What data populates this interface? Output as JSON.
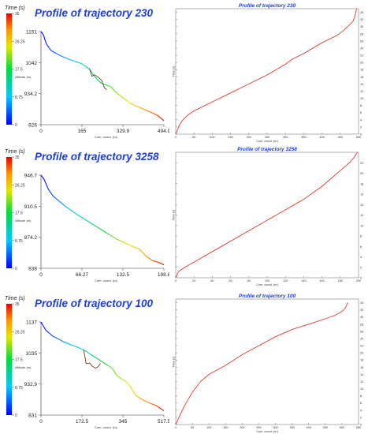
{
  "chart_data": [
    {
      "type": "line",
      "title": "Profile of trajectory 230",
      "colorbar": {
        "title": "Time (s)",
        "ticks": [
          "35",
          "26.25",
          "17.5",
          "8.75",
          "0"
        ],
        "axis_label": "Altitude (m)"
      },
      "profile": {
        "xlabel": "Cum. coord. (m)",
        "xticks": [
          "0",
          "165",
          "329.9",
          "494.9"
        ],
        "yticks": [
          "826",
          "934.2",
          "1042",
          "1151"
        ],
        "xlim": [
          0,
          494.9
        ],
        "ylim": [
          826,
          1151
        ],
        "x": [
          0,
          10,
          20,
          40,
          80,
          120,
          160,
          180,
          200,
          210,
          220,
          240,
          260,
          280,
          300,
          330,
          360,
          400,
          440,
          470,
          494.9
        ],
        "y": [
          1151,
          1140,
          1110,
          1085,
          1066,
          1052,
          1040,
          1030,
          1015,
          1000,
          990,
          972,
          965,
          960,
          940,
          920,
          900,
          885,
          870,
          858,
          840
        ],
        "alt_branch": {
          "x": [
            195,
            205,
            215,
            230,
            245,
            255,
            265
          ],
          "y": [
            1022,
            995,
            1000,
            992,
            980,
            955,
            948
          ]
        }
      },
      "series_chart": {
        "title": "Profile of trajectory 230",
        "ylabel": "Time (s)",
        "xticks": [
          "0",
          "50",
          "100",
          "150",
          "200",
          "250",
          "300",
          "350",
          "400",
          "450",
          "500"
        ],
        "yticks": [
          "0",
          "2",
          "4",
          "6",
          "8",
          "10",
          "12",
          "14",
          "16",
          "18",
          "20",
          "22",
          "24",
          "26",
          "28",
          "30",
          "32",
          "34"
        ],
        "xlim": [
          0,
          500
        ],
        "ylim": [
          0,
          35
        ],
        "x": [
          0,
          10,
          20,
          35,
          50,
          100,
          150,
          200,
          250,
          300,
          320,
          350,
          400,
          440,
          460,
          475,
          485,
          490,
          494.9
        ],
        "y": [
          0,
          2.5,
          4,
          5.5,
          6.5,
          9,
          11.5,
          14,
          16.5,
          19.5,
          21,
          22.5,
          25.5,
          27.5,
          29,
          30.5,
          31.5,
          33,
          35
        ]
      }
    },
    {
      "type": "line",
      "title": "Profile of trajectory 3258",
      "colorbar": {
        "title": "Time (s)",
        "ticks": [
          "35",
          "26.25",
          "17.5",
          "8.75",
          "0"
        ],
        "axis_label": "Altitude (m)"
      },
      "profile": {
        "xlabel": "Cum. coord. (m)",
        "xticks": [
          "0",
          "66.27",
          "132.5",
          "198.8"
        ],
        "yticks": [
          "838",
          "874.2",
          "910.5",
          "946.7"
        ],
        "xlim": [
          0,
          198.8
        ],
        "ylim": [
          838,
          946.7
        ],
        "x": [
          0,
          5,
          12,
          20,
          40,
          60,
          80,
          100,
          120,
          140,
          160,
          170,
          180,
          190,
          198.8
        ],
        "y": [
          946.7,
          942,
          930,
          922,
          910,
          900,
          891,
          882,
          873,
          866,
          860,
          852,
          847,
          845,
          842
        ],
        "alt_branch": {
          "x": [],
          "y": []
        }
      },
      "series_chart": {
        "title": "Profile of trajectory 3258",
        "ylabel": "Time (s)",
        "xticks": [
          "0",
          "20",
          "40",
          "60",
          "80",
          "100",
          "120",
          "140",
          "160",
          "180",
          "200"
        ],
        "yticks": [
          "0",
          "2",
          "4",
          "6",
          "8",
          "10",
          "12",
          "14",
          "16",
          "18",
          "20",
          "22"
        ],
        "xlim": [
          0,
          200
        ],
        "ylim": [
          0,
          24
        ],
        "x": [
          0,
          3,
          8,
          15,
          30,
          50,
          80,
          100,
          120,
          140,
          160,
          170,
          180,
          190,
          195,
          198.8
        ],
        "y": [
          0,
          1.2,
          1.8,
          2.5,
          4,
          6,
          9,
          11,
          13,
          15,
          17.5,
          19,
          20.5,
          22,
          23,
          24
        ]
      }
    },
    {
      "type": "line",
      "title": "Profile of trajectory 100",
      "colorbar": {
        "title": "Time (s)",
        "ticks": [
          "35",
          "26.25",
          "17.5",
          "8.75",
          "0"
        ],
        "axis_label": "Altitude (m)"
      },
      "profile": {
        "xlabel": "Cum. coord. (m)",
        "xticks": [
          "0",
          "172.5",
          "345",
          "517.5"
        ],
        "yticks": [
          "831",
          "932.9",
          "1035",
          "1137"
        ],
        "xlim": [
          0,
          517.5
        ],
        "ylim": [
          831,
          1137
        ],
        "x": [
          0,
          20,
          50,
          100,
          150,
          180,
          200,
          220,
          250,
          280,
          300,
          320,
          340,
          360,
          380,
          400,
          430,
          460,
          490,
          517.5
        ],
        "y": [
          1137,
          1110,
          1090,
          1070,
          1055,
          1045,
          1035,
          1025,
          1010,
          995,
          985,
          960,
          950,
          940,
          920,
          895,
          880,
          870,
          860,
          845
        ],
        "alt_branch": {
          "x": [
            180,
            190,
            205,
            215,
            230,
            240,
            250
          ],
          "y": [
            1045,
            1000,
            1002,
            992,
            985,
            990,
            1000
          ]
        }
      },
      "series_chart": {
        "title": "Profile of trajectory 100",
        "ylabel": "Time (s)",
        "xticks": [
          "0",
          "50",
          "100",
          "150",
          "200",
          "250",
          "300",
          "350",
          "400",
          "450",
          "500",
          "550"
        ],
        "yticks": [
          "0",
          "2",
          "4",
          "6",
          "8",
          "10",
          "12",
          "14",
          "16",
          "18",
          "20",
          "22",
          "24",
          "26",
          "28",
          "30",
          "32",
          "34"
        ],
        "xlim": [
          0,
          550
        ],
        "ylim": [
          0,
          35
        ],
        "x": [
          0,
          10,
          25,
          50,
          75,
          100,
          150,
          200,
          250,
          300,
          350,
          400,
          450,
          480,
          500,
          510,
          515,
          517.5
        ],
        "y": [
          0,
          2,
          5,
          9,
          12,
          14,
          16.5,
          19.5,
          22,
          24.5,
          26.5,
          28,
          29.5,
          30.5,
          31.5,
          32.5,
          33.5,
          34
        ]
      }
    }
  ]
}
